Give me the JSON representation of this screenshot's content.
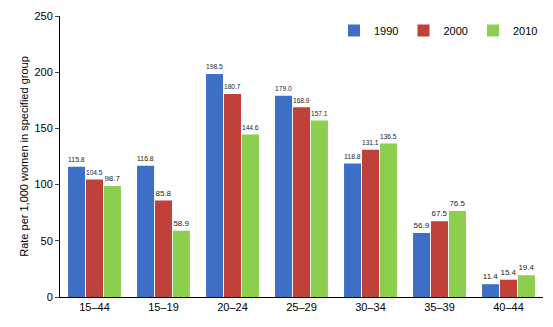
{
  "chart_data": {
    "type": "bar",
    "y_label": "Rate per 1,000 women in specified group",
    "categories": [
      "15–44",
      "15–19",
      "20–24",
      "25–29",
      "30–34",
      "35–39",
      "40–44"
    ],
    "series": [
      {
        "name": "1990",
        "color": "#3d6fc7",
        "values": [
          115.8,
          116.8,
          198.5,
          179.0,
          118.8,
          56.9,
          11.4
        ],
        "value_labels": [
          "115.8",
          "116.8",
          "198.5",
          "179.0",
          "118.8",
          "56.9",
          "11.4"
        ]
      },
      {
        "name": "2000",
        "color": "#c0403a",
        "values": [
          104.5,
          85.8,
          180.7,
          168.9,
          131.1,
          67.5,
          15.4
        ],
        "value_labels": [
          "104.5",
          "85.8",
          "180.7",
          "168.9",
          "131.1",
          "67.5",
          "15.4"
        ]
      },
      {
        "name": "2010",
        "color": "#8ccf4f",
        "values": [
          98.7,
          58.9,
          144.6,
          157.1,
          136.5,
          76.5,
          19.4
        ],
        "value_labels": [
          "98.7",
          "58.9",
          "144.6",
          "157.1",
          "136.5",
          "76.5",
          "19.4"
        ]
      }
    ],
    "ylim": [
      0,
      250
    ],
    "yticks": [
      0,
      50,
      100,
      150,
      200,
      250
    ],
    "grid": false,
    "legend": "top right",
    "data_labels": true
  }
}
